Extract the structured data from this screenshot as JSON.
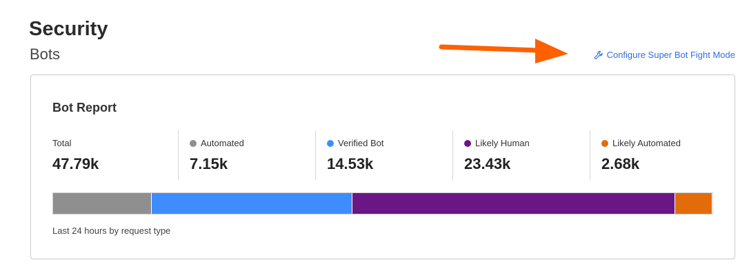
{
  "header": {
    "title": "Security",
    "subtitle": "Bots"
  },
  "configure_link": {
    "label": "Configure Super Bot Fight Mode",
    "icon": "wrench-icon",
    "color": "#2f6fe0"
  },
  "annotation": {
    "arrow_color": "#ff6000"
  },
  "report": {
    "title": "Bot Report",
    "total": {
      "label": "Total",
      "value": "47.79k"
    },
    "categories": [
      {
        "label": "Automated",
        "value": "7.15k",
        "amount": 7.15,
        "color": "#8f8f8f"
      },
      {
        "label": "Verified Bot",
        "value": "14.53k",
        "amount": 14.53,
        "color": "#3f8cff"
      },
      {
        "label": "Likely Human",
        "value": "23.43k",
        "amount": 23.43,
        "color": "#6b1685"
      },
      {
        "label": "Likely Automated",
        "value": "2.68k",
        "amount": 2.68,
        "color": "#e36c0a"
      }
    ],
    "caption": "Last 24 hours by request type"
  }
}
